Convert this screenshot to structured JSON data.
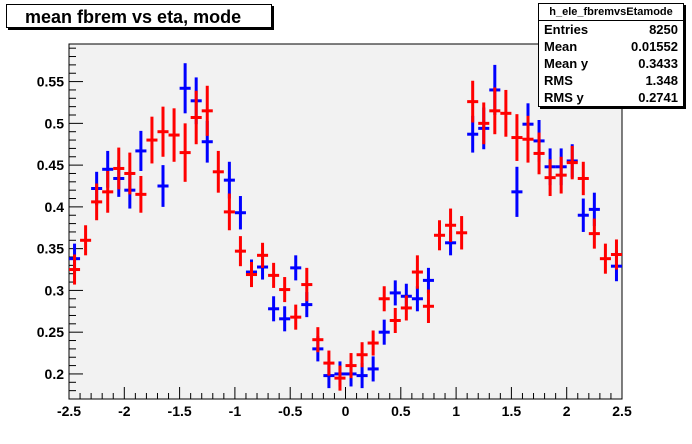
{
  "title": "mean fbrem vs eta, mode",
  "stats": {
    "name": "h_ele_fbremvsEtamode",
    "rows": [
      {
        "label": "Entries",
        "value": "8250"
      },
      {
        "label": "Mean",
        "value": "0.01552"
      },
      {
        "label": "Mean y",
        "value": "0.3433"
      },
      {
        "label": "RMS",
        "value": "1.348"
      },
      {
        "label": "RMS y",
        "value": "0.2741"
      }
    ]
  },
  "chart_data": {
    "type": "scatter",
    "title": "mean fbrem vs eta, mode",
    "xlabel": "",
    "ylabel": "",
    "xlim": [
      -2.5,
      2.5
    ],
    "ylim": [
      0.17,
      0.595
    ],
    "xticks": [
      -2.5,
      -2,
      -1.5,
      -1,
      -0.5,
      0,
      0.5,
      1,
      1.5,
      2,
      2.5
    ],
    "xtick_labels": [
      "-2.5",
      "-2",
      "-1.5",
      "-1",
      "-0.5",
      "0",
      "0.5",
      "1",
      "1.5",
      "2",
      "2.5"
    ],
    "yticks": [
      0.2,
      0.25,
      0.3,
      0.35,
      0.4,
      0.45,
      0.5,
      0.55
    ],
    "ytick_labels": [
      "0.2",
      "0.25",
      "0.3",
      "0.35",
      "0.4",
      "0.45",
      "0.5",
      "0.55"
    ],
    "bin_halfwidth": 0.05,
    "grid": false,
    "colors": {
      "frame_bg": "#f2f2f2",
      "series_blue": "#0000ff",
      "series_red": "#ff0000"
    },
    "series": [
      {
        "color": "#0000ff",
        "points": [
          {
            "x": -2.45,
            "y": 0.338,
            "err": 0.018
          },
          {
            "x": -2.25,
            "y": 0.422,
            "err": 0.02
          },
          {
            "x": -2.15,
            "y": 0.445,
            "err": 0.022
          },
          {
            "x": -2.05,
            "y": 0.434,
            "err": 0.022
          },
          {
            "x": -1.95,
            "y": 0.42,
            "err": 0.022
          },
          {
            "x": -1.85,
            "y": 0.467,
            "err": 0.024
          },
          {
            "x": -1.65,
            "y": 0.425,
            "err": 0.025
          },
          {
            "x": -1.45,
            "y": 0.542,
            "err": 0.03
          },
          {
            "x": -1.35,
            "y": 0.527,
            "err": 0.028
          },
          {
            "x": -1.25,
            "y": 0.478,
            "err": 0.025
          },
          {
            "x": -1.05,
            "y": 0.432,
            "err": 0.022
          },
          {
            "x": -0.95,
            "y": 0.393,
            "err": 0.02
          },
          {
            "x": -0.85,
            "y": 0.322,
            "err": 0.015
          },
          {
            "x": -0.75,
            "y": 0.328,
            "err": 0.015
          },
          {
            "x": -0.65,
            "y": 0.278,
            "err": 0.015
          },
          {
            "x": -0.55,
            "y": 0.266,
            "err": 0.015
          },
          {
            "x": -0.45,
            "y": 0.327,
            "err": 0.015
          },
          {
            "x": -0.35,
            "y": 0.283,
            "err": 0.015
          },
          {
            "x": -0.25,
            "y": 0.23,
            "err": 0.015
          },
          {
            "x": -0.15,
            "y": 0.198,
            "err": 0.015
          },
          {
            "x": -0.05,
            "y": 0.2,
            "err": 0.015
          },
          {
            "x": 0.05,
            "y": 0.2,
            "err": 0.015
          },
          {
            "x": 0.15,
            "y": 0.198,
            "err": 0.015
          },
          {
            "x": 0.25,
            "y": 0.206,
            "err": 0.015
          },
          {
            "x": 0.35,
            "y": 0.25,
            "err": 0.015
          },
          {
            "x": 0.45,
            "y": 0.297,
            "err": 0.015
          },
          {
            "x": 0.55,
            "y": 0.293,
            "err": 0.015
          },
          {
            "x": 0.65,
            "y": 0.29,
            "err": 0.015
          },
          {
            "x": 0.75,
            "y": 0.312,
            "err": 0.015
          },
          {
            "x": 0.95,
            "y": 0.357,
            "err": 0.015
          },
          {
            "x": 1.15,
            "y": 0.487,
            "err": 0.022
          },
          {
            "x": 1.25,
            "y": 0.494,
            "err": 0.025
          },
          {
            "x": 1.35,
            "y": 0.54,
            "err": 0.03
          },
          {
            "x": 1.55,
            "y": 0.418,
            "err": 0.03
          },
          {
            "x": 1.65,
            "y": 0.499,
            "err": 0.025
          },
          {
            "x": 1.75,
            "y": 0.479,
            "err": 0.025
          },
          {
            "x": 1.85,
            "y": 0.448,
            "err": 0.022
          },
          {
            "x": 1.95,
            "y": 0.448,
            "err": 0.022
          },
          {
            "x": 2.05,
            "y": 0.455,
            "err": 0.02
          },
          {
            "x": 2.15,
            "y": 0.39,
            "err": 0.02
          },
          {
            "x": 2.25,
            "y": 0.397,
            "err": 0.02
          },
          {
            "x": 2.45,
            "y": 0.329,
            "err": 0.018
          }
        ]
      },
      {
        "color": "#ff0000",
        "points": [
          {
            "x": -2.45,
            "y": 0.325,
            "err": 0.018
          },
          {
            "x": -2.35,
            "y": 0.36,
            "err": 0.018
          },
          {
            "x": -2.25,
            "y": 0.406,
            "err": 0.022
          },
          {
            "x": -2.15,
            "y": 0.418,
            "err": 0.025
          },
          {
            "x": -2.05,
            "y": 0.446,
            "err": 0.025
          },
          {
            "x": -1.95,
            "y": 0.44,
            "err": 0.025
          },
          {
            "x": -1.85,
            "y": 0.415,
            "err": 0.022
          },
          {
            "x": -1.75,
            "y": 0.48,
            "err": 0.028
          },
          {
            "x": -1.65,
            "y": 0.49,
            "err": 0.03
          },
          {
            "x": -1.55,
            "y": 0.486,
            "err": 0.032
          },
          {
            "x": -1.45,
            "y": 0.465,
            "err": 0.035
          },
          {
            "x": -1.35,
            "y": 0.507,
            "err": 0.032
          },
          {
            "x": -1.25,
            "y": 0.515,
            "err": 0.03
          },
          {
            "x": -1.15,
            "y": 0.442,
            "err": 0.025
          },
          {
            "x": -1.05,
            "y": 0.394,
            "err": 0.022
          },
          {
            "x": -0.95,
            "y": 0.347,
            "err": 0.018
          },
          {
            "x": -0.85,
            "y": 0.319,
            "err": 0.015
          },
          {
            "x": -0.75,
            "y": 0.342,
            "err": 0.015
          },
          {
            "x": -0.65,
            "y": 0.318,
            "err": 0.015
          },
          {
            "x": -0.55,
            "y": 0.301,
            "err": 0.015
          },
          {
            "x": -0.45,
            "y": 0.268,
            "err": 0.015
          },
          {
            "x": -0.35,
            "y": 0.307,
            "err": 0.02
          },
          {
            "x": -0.25,
            "y": 0.241,
            "err": 0.015
          },
          {
            "x": -0.15,
            "y": 0.213,
            "err": 0.015
          },
          {
            "x": -0.05,
            "y": 0.195,
            "err": 0.015
          },
          {
            "x": 0.05,
            "y": 0.21,
            "err": 0.015
          },
          {
            "x": 0.15,
            "y": 0.223,
            "err": 0.015
          },
          {
            "x": 0.25,
            "y": 0.237,
            "err": 0.015
          },
          {
            "x": 0.35,
            "y": 0.29,
            "err": 0.015
          },
          {
            "x": 0.45,
            "y": 0.264,
            "err": 0.015
          },
          {
            "x": 0.55,
            "y": 0.279,
            "err": 0.015
          },
          {
            "x": 0.65,
            "y": 0.322,
            "err": 0.02
          },
          {
            "x": 0.75,
            "y": 0.281,
            "err": 0.02
          },
          {
            "x": 0.85,
            "y": 0.366,
            "err": 0.018
          },
          {
            "x": 0.95,
            "y": 0.378,
            "err": 0.02
          },
          {
            "x": 1.05,
            "y": 0.369,
            "err": 0.02
          },
          {
            "x": 1.15,
            "y": 0.526,
            "err": 0.025
          },
          {
            "x": 1.25,
            "y": 0.5,
            "err": 0.025
          },
          {
            "x": 1.35,
            "y": 0.515,
            "err": 0.028
          },
          {
            "x": 1.45,
            "y": 0.512,
            "err": 0.028
          },
          {
            "x": 1.55,
            "y": 0.483,
            "err": 0.028
          },
          {
            "x": 1.65,
            "y": 0.481,
            "err": 0.028
          },
          {
            "x": 1.75,
            "y": 0.464,
            "err": 0.025
          },
          {
            "x": 1.85,
            "y": 0.435,
            "err": 0.022
          },
          {
            "x": 1.95,
            "y": 0.438,
            "err": 0.022
          },
          {
            "x": 2.05,
            "y": 0.453,
            "err": 0.02
          },
          {
            "x": 2.15,
            "y": 0.434,
            "err": 0.02
          },
          {
            "x": 2.25,
            "y": 0.368,
            "err": 0.018
          },
          {
            "x": 2.35,
            "y": 0.338,
            "err": 0.018
          },
          {
            "x": 2.45,
            "y": 0.343,
            "err": 0.018
          }
        ]
      }
    ]
  }
}
